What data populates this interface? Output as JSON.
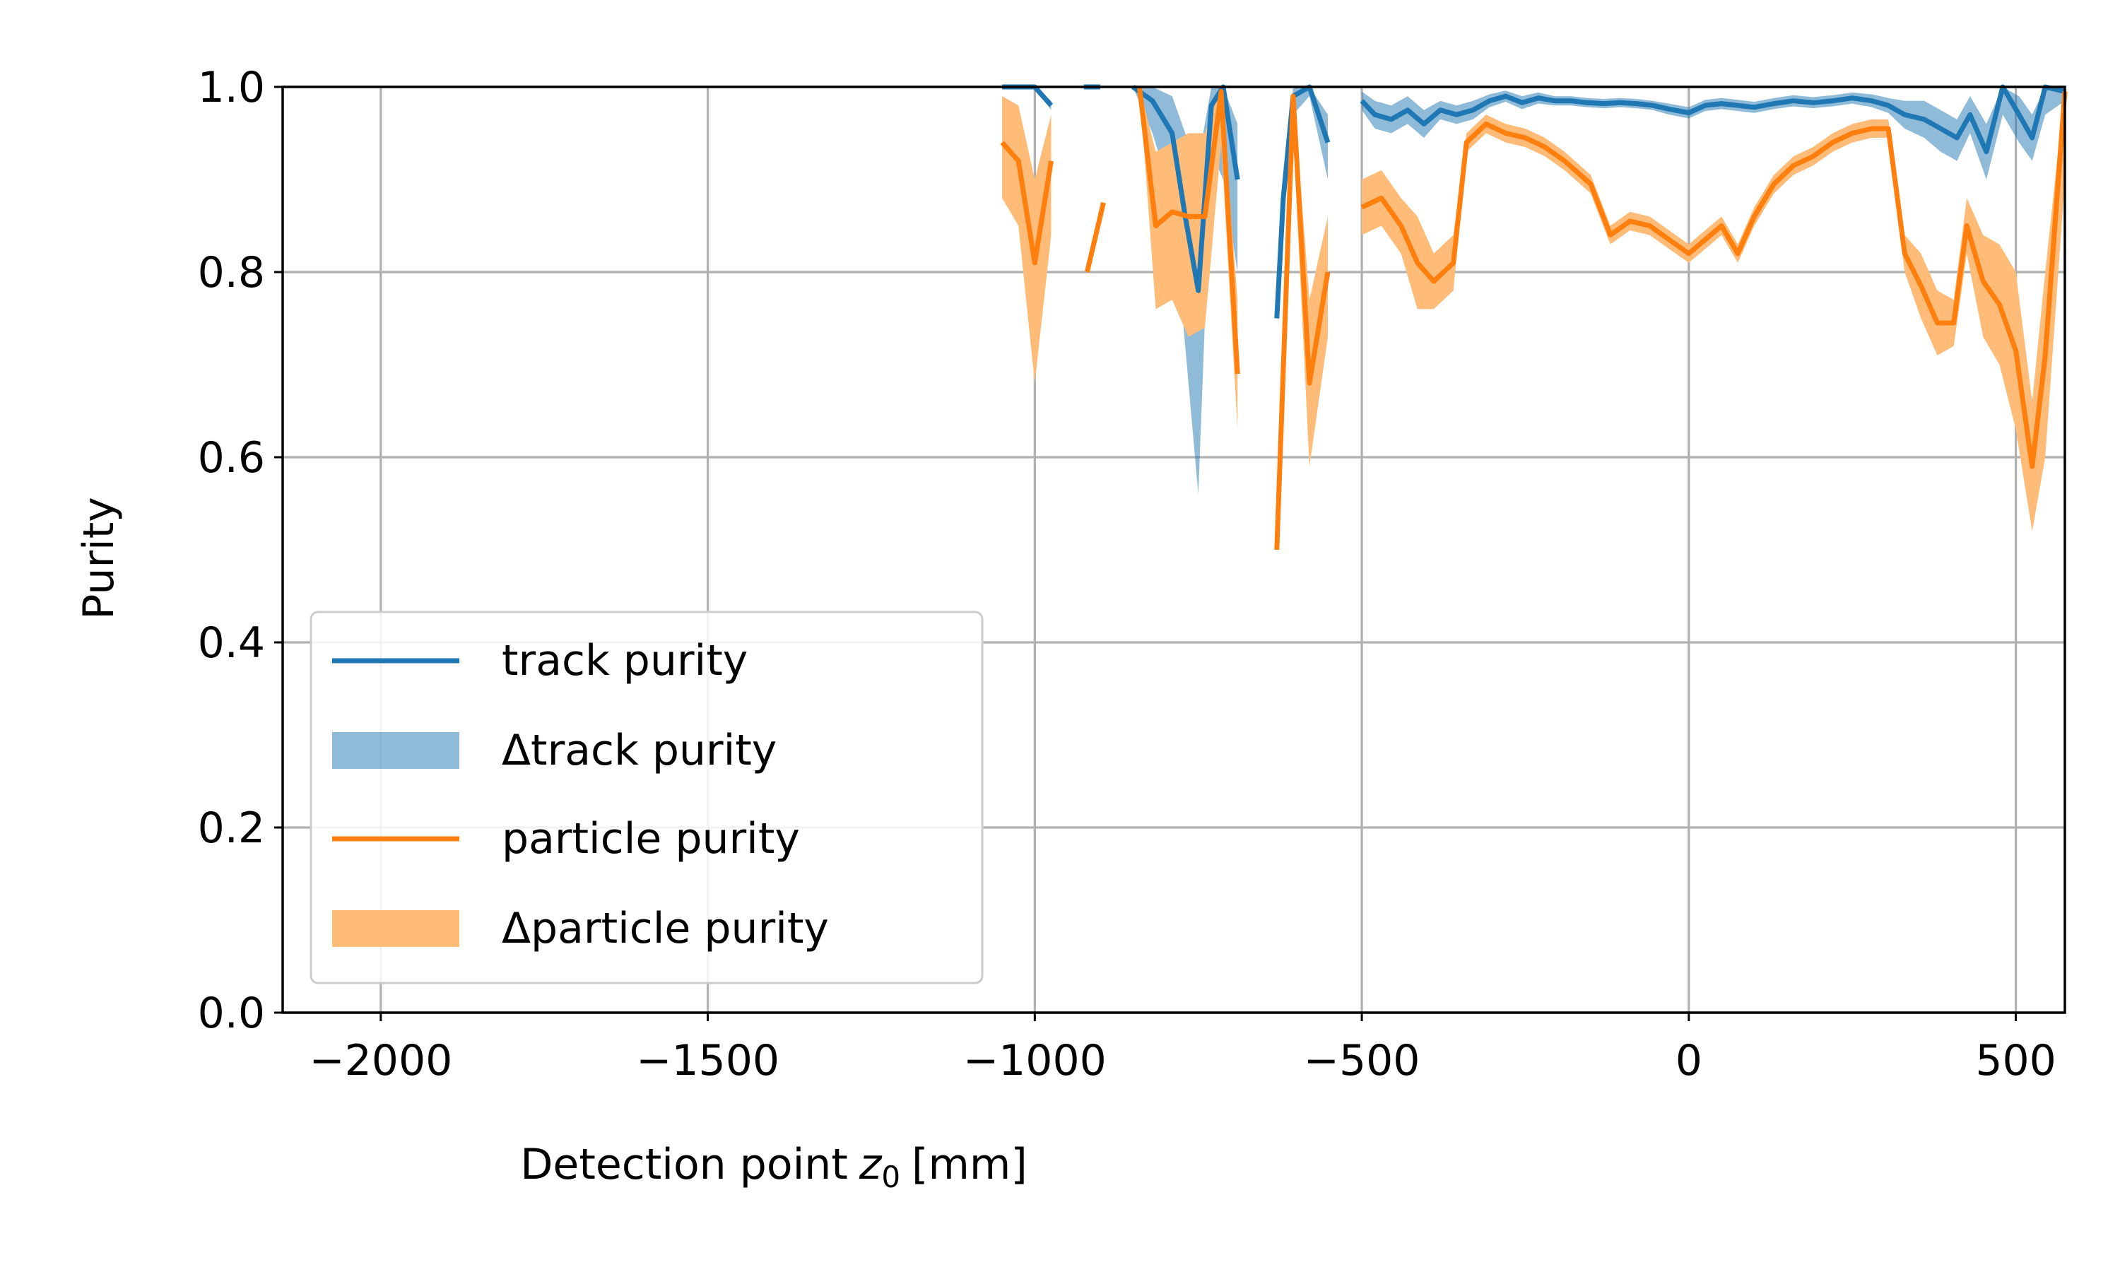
{
  "chart_data": {
    "type": "line",
    "xlabel": "Detection point",
    "xlabel_var": "z",
    "xlabel_sub": "0",
    "xlabel_unit": "[mm]",
    "ylabel": "Purity",
    "xlim": [
      -2150,
      575
    ],
    "ylim": [
      0.0,
      1.0
    ],
    "x_ticks": [
      -2000,
      -1500,
      -1000,
      -500,
      0,
      500
    ],
    "x_tick_labels": [
      "−2000",
      "−1500",
      "−1000",
      "−500",
      "0",
      "500"
    ],
    "y_ticks": [
      0.0,
      0.2,
      0.4,
      0.6,
      0.8,
      1.0
    ],
    "y_tick_labels": [
      "0.0",
      "0.2",
      "0.4",
      "0.6",
      "0.8",
      "1.0"
    ],
    "grid": true,
    "legend_position": "lower-left",
    "series": [
      {
        "name": "track purity",
        "band_name": "Δtrack purity",
        "color": "#1f77b4",
        "band_color": "#1f77b4",
        "segments": [
          [
            [
              -1050,
              1.0,
              1.0,
              1.0
            ],
            [
              -1000,
              1.0,
              1.0,
              1.0
            ],
            [
              -975,
              0.98,
              0.975,
              0.985
            ]
          ],
          [
            [
              -925,
              1.0,
              1.0,
              1.0
            ],
            [
              -900,
              1.0,
              1.0,
              1.0
            ]
          ],
          [
            [
              -850,
              1.0,
              1.0,
              1.0
            ],
            [
              -820,
              0.985,
              0.95,
              1.0
            ],
            [
              -790,
              0.95,
              0.88,
              0.99
            ],
            [
              -770,
              0.86,
              0.72,
              0.95
            ],
            [
              -750,
              0.78,
              0.56,
              0.92
            ],
            [
              -730,
              0.98,
              0.93,
              1.0
            ],
            [
              -712,
              1.0,
              0.9,
              1.0
            ],
            [
              -690,
              0.9,
              0.8,
              0.96
            ]
          ],
          [
            [
              -630,
              0.75,
              0.75,
              0.75
            ],
            [
              -620,
              0.88,
              0.85,
              0.9
            ],
            [
              -605,
              0.99,
              0.97,
              1.0
            ],
            [
              -580,
              1.0,
              0.99,
              1.0
            ],
            [
              -552,
              0.94,
              0.9,
              0.97
            ]
          ],
          [
            [
              -500,
              0.985,
              0.975,
              0.995
            ],
            [
              -480,
              0.97,
              0.955,
              0.985
            ],
            [
              -455,
              0.965,
              0.95,
              0.98
            ],
            [
              -430,
              0.975,
              0.96,
              0.99
            ],
            [
              -405,
              0.96,
              0.945,
              0.975
            ],
            [
              -380,
              0.975,
              0.965,
              0.985
            ],
            [
              -355,
              0.97,
              0.96,
              0.98
            ],
            [
              -330,
              0.975,
              0.965,
              0.985
            ],
            [
              -305,
              0.985,
              0.978,
              0.992
            ],
            [
              -280,
              0.99,
              0.984,
              0.996
            ],
            [
              -255,
              0.983,
              0.976,
              0.99
            ],
            [
              -230,
              0.988,
              0.982,
              0.994
            ],
            [
              -205,
              0.985,
              0.98,
              0.99
            ],
            [
              -180,
              0.985,
              0.98,
              0.99
            ],
            [
              -155,
              0.983,
              0.978,
              0.988
            ],
            [
              -130,
              0.982,
              0.977,
              0.987
            ],
            [
              -105,
              0.983,
              0.978,
              0.988
            ],
            [
              -80,
              0.982,
              0.977,
              0.987
            ],
            [
              -55,
              0.98,
              0.975,
              0.985
            ],
            [
              -30,
              0.976,
              0.97,
              0.982
            ],
            [
              0,
              0.972,
              0.966,
              0.978
            ],
            [
              25,
              0.98,
              0.974,
              0.986
            ],
            [
              50,
              0.982,
              0.976,
              0.988
            ],
            [
              75,
              0.98,
              0.974,
              0.986
            ],
            [
              100,
              0.978,
              0.972,
              0.984
            ],
            [
              130,
              0.982,
              0.976,
              0.988
            ],
            [
              160,
              0.985,
              0.979,
              0.991
            ],
            [
              190,
              0.983,
              0.977,
              0.989
            ],
            [
              220,
              0.985,
              0.979,
              0.991
            ],
            [
              250,
              0.988,
              0.982,
              0.994
            ],
            [
              280,
              0.985,
              0.978,
              0.992
            ],
            [
              305,
              0.98,
              0.972,
              0.988
            ],
            [
              330,
              0.97,
              0.955,
              0.985
            ],
            [
              360,
              0.965,
              0.945,
              0.985
            ],
            [
              385,
              0.955,
              0.93,
              0.975
            ],
            [
              410,
              0.945,
              0.92,
              0.965
            ],
            [
              430,
              0.97,
              0.95,
              0.99
            ],
            [
              455,
              0.93,
              0.9,
              0.96
            ],
            [
              480,
              1.0,
              0.97,
              1.0
            ],
            [
              505,
              0.97,
              0.94,
              0.99
            ],
            [
              525,
              0.945,
              0.92,
              0.97
            ],
            [
              545,
              1.0,
              0.97,
              1.0
            ],
            [
              575,
              0.995,
              0.985,
              1.0
            ]
          ]
        ]
      },
      {
        "name": "particle purity",
        "band_name": "Δparticle purity",
        "color": "#ff7f0e",
        "band_color": "#ffbb78",
        "segments": [
          [
            [
              -1050,
              0.94,
              0.88,
              0.99
            ],
            [
              -1025,
              0.92,
              0.85,
              0.98
            ],
            [
              -1000,
              0.81,
              0.68,
              0.9
            ],
            [
              -975,
              0.92,
              0.84,
              0.97
            ]
          ],
          [
            [
              -920,
              0.8,
              0.8,
              0.8
            ],
            [
              -895,
              0.875,
              0.875,
              0.875
            ]
          ],
          [
            [
              -840,
              1.0,
              1.0,
              1.0
            ],
            [
              -815,
              0.85,
              0.76,
              0.93
            ],
            [
              -790,
              0.865,
              0.77,
              0.94
            ],
            [
              -765,
              0.86,
              0.73,
              0.95
            ],
            [
              -740,
              0.86,
              0.74,
              0.95
            ],
            [
              -715,
              0.995,
              0.94,
              1.0
            ],
            [
              -690,
              0.69,
              0.63,
              0.77
            ]
          ],
          [
            [
              -630,
              0.5,
              0.5,
              0.5
            ],
            [
              -605,
              0.99,
              0.95,
              1.0
            ],
            [
              -580,
              0.68,
              0.59,
              0.77
            ],
            [
              -552,
              0.8,
              0.73,
              0.86
            ]
          ],
          [
            [
              -500,
              0.87,
              0.84,
              0.9
            ],
            [
              -470,
              0.88,
              0.85,
              0.91
            ],
            [
              -440,
              0.85,
              0.82,
              0.88
            ],
            [
              -415,
              0.81,
              0.76,
              0.86
            ],
            [
              -390,
              0.79,
              0.76,
              0.82
            ],
            [
              -360,
              0.81,
              0.78,
              0.84
            ],
            [
              -340,
              0.94,
              0.93,
              0.95
            ],
            [
              -310,
              0.96,
              0.95,
              0.97
            ],
            [
              -280,
              0.95,
              0.94,
              0.96
            ],
            [
              -250,
              0.945,
              0.935,
              0.955
            ],
            [
              -220,
              0.935,
              0.925,
              0.945
            ],
            [
              -190,
              0.92,
              0.91,
              0.93
            ],
            [
              -150,
              0.895,
              0.885,
              0.905
            ],
            [
              -120,
              0.84,
              0.83,
              0.85
            ],
            [
              -90,
              0.855,
              0.845,
              0.865
            ],
            [
              -60,
              0.85,
              0.84,
              0.86
            ],
            [
              0,
              0.82,
              0.81,
              0.83
            ],
            [
              50,
              0.85,
              0.84,
              0.86
            ],
            [
              75,
              0.82,
              0.81,
              0.83
            ],
            [
              100,
              0.86,
              0.85,
              0.87
            ],
            [
              130,
              0.895,
              0.885,
              0.905
            ],
            [
              160,
              0.915,
              0.905,
              0.925
            ],
            [
              190,
              0.925,
              0.915,
              0.935
            ],
            [
              220,
              0.94,
              0.93,
              0.95
            ],
            [
              250,
              0.95,
              0.94,
              0.96
            ],
            [
              280,
              0.955,
              0.945,
              0.965
            ],
            [
              305,
              0.955,
              0.945,
              0.965
            ],
            [
              330,
              0.82,
              0.8,
              0.84
            ],
            [
              355,
              0.785,
              0.75,
              0.82
            ],
            [
              380,
              0.745,
              0.71,
              0.78
            ],
            [
              405,
              0.745,
              0.72,
              0.77
            ],
            [
              425,
              0.85,
              0.82,
              0.88
            ],
            [
              450,
              0.79,
              0.73,
              0.84
            ],
            [
              475,
              0.765,
              0.7,
              0.83
            ],
            [
              500,
              0.715,
              0.63,
              0.8
            ],
            [
              525,
              0.59,
              0.52,
              0.66
            ],
            [
              545,
              0.71,
              0.6,
              0.8
            ],
            [
              575,
              0.995,
              0.9,
              1.0
            ]
          ]
        ]
      }
    ]
  }
}
